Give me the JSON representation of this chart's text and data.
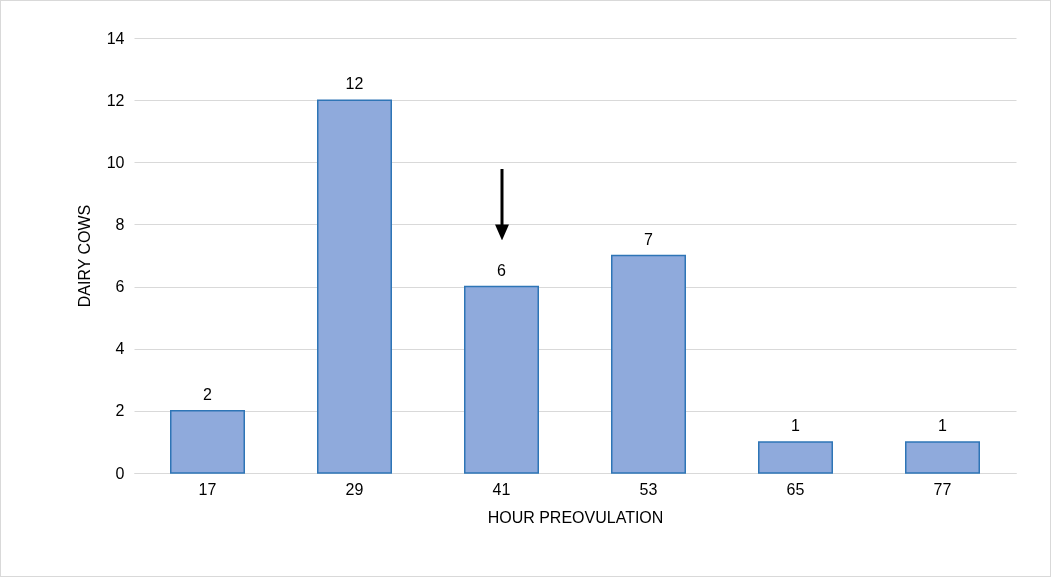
{
  "chart_data": {
    "type": "bar",
    "xlabel": "HOUR PREOVULATION",
    "ylabel": "DAIRY COWS",
    "categories": [
      "17",
      "29",
      "41",
      "53",
      "65",
      "77"
    ],
    "values": [
      2,
      12,
      6,
      7,
      1,
      1
    ],
    "color": "#8faadc",
    "ylim": [
      0,
      14
    ],
    "yticks": [
      0,
      2,
      4,
      6,
      8,
      10,
      12,
      14
    ],
    "grid": "y",
    "data_labels": true
  }
}
